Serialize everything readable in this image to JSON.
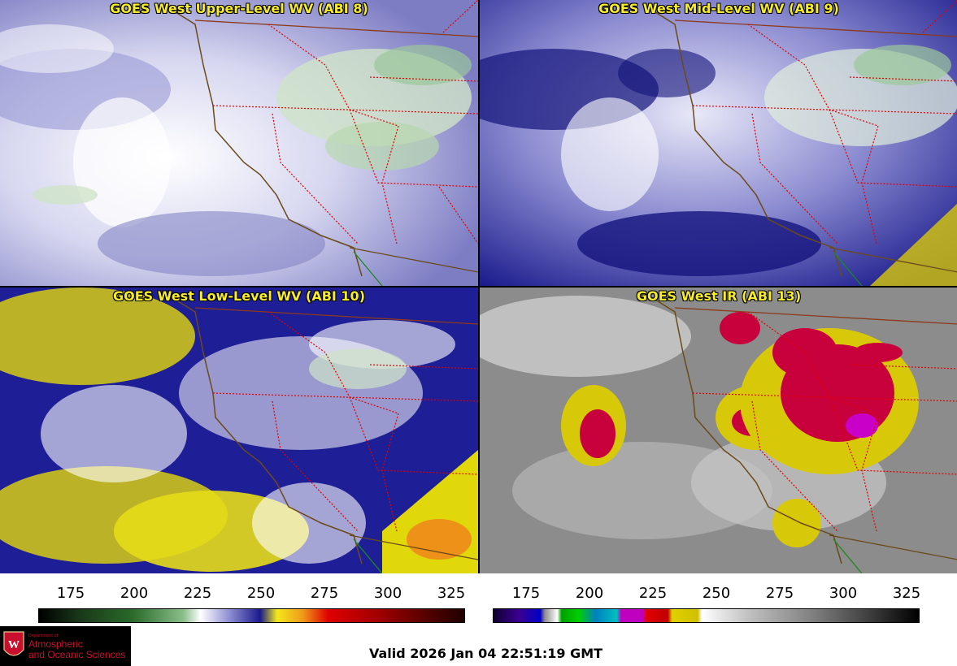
{
  "panels": [
    {
      "title": "GOES West Upper-Level WV (ABI 8)"
    },
    {
      "title": "GOES West Mid-Level WV (ABI 9)"
    },
    {
      "title": "GOES West Low-Level WV (ABI 10)"
    },
    {
      "title": "GOES West IR (ABI 13)"
    }
  ],
  "colorbars": [
    {
      "ticks": [
        "175",
        "200",
        "225",
        "250",
        "275",
        "300",
        "325"
      ]
    },
    {
      "ticks": [
        "175",
        "200",
        "225",
        "250",
        "275",
        "300",
        "325"
      ]
    }
  ],
  "colors": {
    "wv_dry": "#1a1a8c",
    "wv_moist": "#ffffff",
    "wv_warm": "#f2e81a",
    "ir_cold": "#d4003c",
    "ir_mid": "#e6d200",
    "ir_bg": "#8c8c8c",
    "coast": "#6b4a1a",
    "state_border": "#e00000"
  },
  "footer": {
    "valid": "Valid 2026 Jan 04 22:51:19 GMT",
    "logo_dept": "Department of",
    "logo_line1": "Atmospheric",
    "logo_line2": "and Oceanic Sciences"
  }
}
